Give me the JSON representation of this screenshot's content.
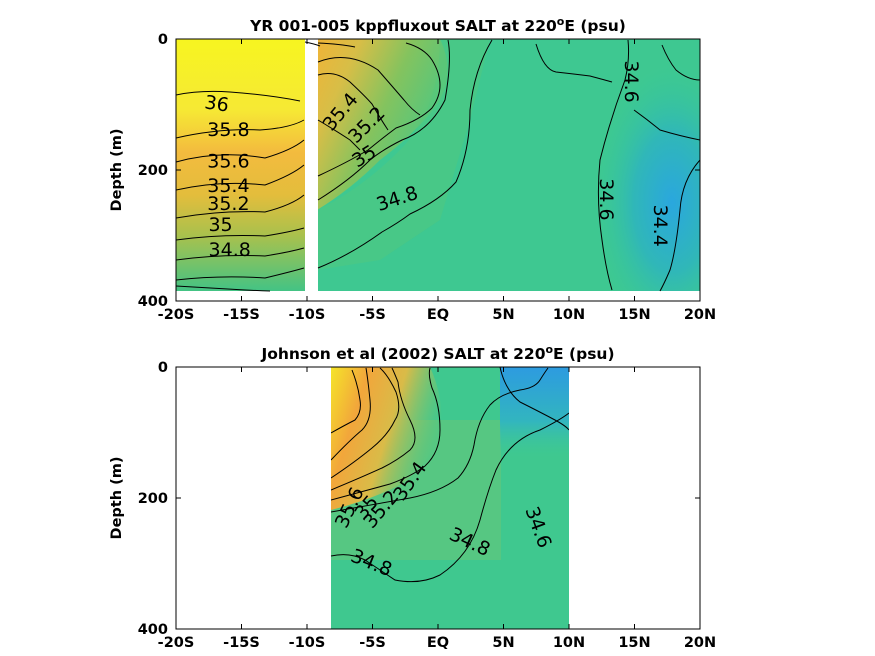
{
  "chart_data": [
    {
      "type": "heatmap",
      "title": "YR 001-005 kppfluxout SALT at 220",
      "title_sup": "o",
      "title_rest": "E (psu)",
      "ylabel": "Depth (m)",
      "xlim": [
        -20,
        20
      ],
      "ylim": [
        0,
        400
      ],
      "y_reversed": true,
      "x_ticks": [
        -20,
        -15,
        -10,
        -5,
        0,
        5,
        10,
        15,
        20
      ],
      "x_tick_labels": [
        "-20S",
        "-15S",
        "-10S",
        "-5S",
        "EQ",
        "5N",
        "10N",
        "15N",
        "20N"
      ],
      "y_ticks": [
        0,
        200,
        400
      ],
      "y_tick_labels": [
        "0",
        "200",
        "400"
      ],
      "data_extent": {
        "x": [
          -20,
          20
        ],
        "y": [
          0,
          385
        ]
      },
      "gap_x": [
        -10.4,
        -9.4
      ],
      "contour_labels": [
        {
          "text": "36",
          "x": -16.9,
          "y": 100,
          "angle": 8
        },
        {
          "text": "35.8",
          "x": -16.0,
          "y": 140,
          "angle": 0
        },
        {
          "text": "35.6",
          "x": -16.0,
          "y": 188,
          "angle": 0
        },
        {
          "text": "35.4",
          "x": -16.0,
          "y": 225,
          "angle": 0
        },
        {
          "text": "35.2",
          "x": -16.0,
          "y": 253,
          "angle": 0
        },
        {
          "text": "35",
          "x": -16.6,
          "y": 285,
          "angle": 0
        },
        {
          "text": "34.8",
          "x": -15.9,
          "y": 323,
          "angle": 0
        },
        {
          "text": "35.4",
          "x": -7.4,
          "y": 112,
          "angle": -50
        },
        {
          "text": "35.2",
          "x": -5.4,
          "y": 132,
          "angle": -45
        },
        {
          "text": "35",
          "x": -5.6,
          "y": 180,
          "angle": -32
        },
        {
          "text": "34.8",
          "x": -3.1,
          "y": 245,
          "angle": -18
        },
        {
          "text": "34.6",
          "x": 14.7,
          "y": 65,
          "angle": 90
        },
        {
          "text": "34.6",
          "x": 12.8,
          "y": 245,
          "angle": 90
        },
        {
          "text": "34.4",
          "x": 16.9,
          "y": 285,
          "angle": 90
        }
      ]
    },
    {
      "type": "heatmap",
      "title": "Johnson et al (2002) SALT at 220",
      "title_sup": "o",
      "title_rest": "E (psu)",
      "ylabel": "Depth (m)",
      "xlim": [
        -20,
        20
      ],
      "ylim": [
        0,
        400
      ],
      "y_reversed": true,
      "x_ticks": [
        -20,
        -15,
        -10,
        -5,
        0,
        5,
        10,
        15,
        20
      ],
      "x_tick_labels": [
        "-20S",
        "-15S",
        "-10S",
        "-5S",
        "EQ",
        "5N",
        "10N",
        "15N",
        "20N"
      ],
      "y_ticks": [
        0,
        200,
        400
      ],
      "y_tick_labels": [
        "0",
        "200",
        "400"
      ],
      "data_extent": {
        "x": [
          -8,
          10
        ],
        "y": [
          0,
          400
        ]
      },
      "contour_labels": [
        {
          "text": "35.4",
          "x": -2.1,
          "y": 175,
          "angle": -55
        },
        {
          "text": "35.2",
          "x": -4.3,
          "y": 218,
          "angle": -50
        },
        {
          "text": "35",
          "x": -5.4,
          "y": 215,
          "angle": -50
        },
        {
          "text": "35.6",
          "x": -6.7,
          "y": 215,
          "angle": -65
        },
        {
          "text": "34.8",
          "x": 2.4,
          "y": 268,
          "angle": 25
        },
        {
          "text": "34.6",
          "x": 7.6,
          "y": 245,
          "angle": 70
        },
        {
          "text": "34.8",
          "x": -5.1,
          "y": 595,
          "angle": 22
        }
      ]
    }
  ]
}
